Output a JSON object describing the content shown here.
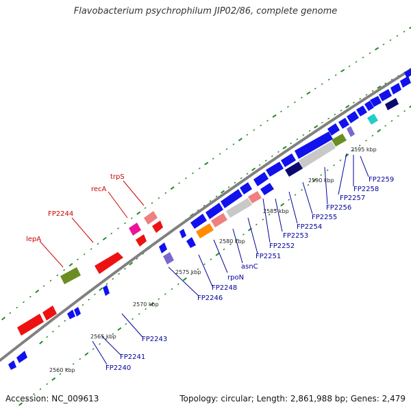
{
  "title": "Flavobacterium psychrophilum JIP02/86, complete genome",
  "footer": {
    "accession": "Accession: NC_009613",
    "summary": "Topology: circular; Length: 2,861,988 bp; Genes: 2,479"
  },
  "ticks": [
    "2560 kbp",
    "2565 kbp",
    "2570 kbp",
    "2575 kbp",
    "2580 kbp",
    "2585 kbp",
    "2590 kbp",
    "2595 kbp"
  ],
  "gene_labels_top": [
    "lepA",
    "FP2244",
    "recA",
    "trpS"
  ],
  "gene_labels_bottom": [
    "FP2240",
    "FP2241",
    "FP2243",
    "FP2246",
    "FP2248",
    "rpoN",
    "asnC",
    "FP2251",
    "FP2252",
    "FP2253",
    "FP2254",
    "FP2255",
    "FP2256",
    "FP2257",
    "FP2258",
    "FP2259"
  ],
  "colors": {
    "backbone": "#808080",
    "red_gene": "#ee1111",
    "blue_gene": "#1111ee",
    "olive": "#6b8e23",
    "navy": "#0a0a6e",
    "grey_gene": "#c8c8c8",
    "pink": "#f08080",
    "magenta": "#ee1199",
    "orange": "#ff8c00",
    "cyan": "#22cccc",
    "lavender": "#7b68cc",
    "gc_dot": "#228b22",
    "label_top": "#cc0000",
    "label_bottom": "#000099"
  }
}
